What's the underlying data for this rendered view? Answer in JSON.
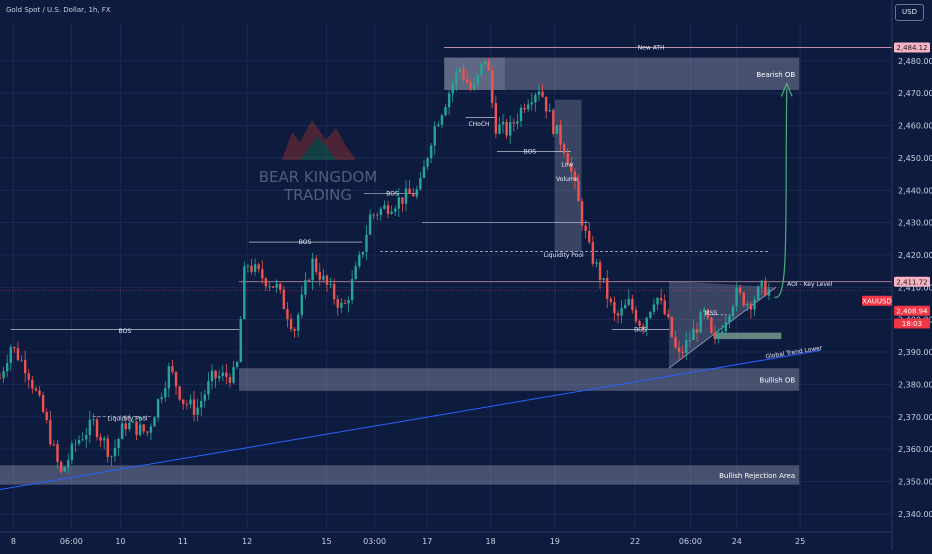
{
  "header": {
    "symbol_title": "Gold Spot / U.S. Dollar, 1h, FX",
    "currency_button": "USD"
  },
  "chart_data": {
    "type": "candlestick",
    "title": "Gold Spot / U.S. Dollar, 1h, FX",
    "ylim": [
      2335,
      2492
    ],
    "y_ticks": [
      2340,
      2350,
      2360,
      2370,
      2380,
      2390,
      2400,
      2410,
      2420,
      2430,
      2440,
      2450,
      2460,
      2470,
      2480
    ],
    "x_ticks": [
      "8",
      "06:00",
      "10",
      "11",
      "12",
      "15",
      "03:00",
      "17",
      "18",
      "19",
      "22",
      "06:00",
      "24",
      "25"
    ],
    "x_tick_pos": [
      0.015,
      0.08,
      0.135,
      0.205,
      0.277,
      0.366,
      0.42,
      0.479,
      0.55,
      0.622,
      0.712,
      0.774,
      0.826,
      0.897
    ],
    "price_tags": [
      {
        "label": "2,484.12",
        "value": 2484.12,
        "color": "#f7b4c4",
        "text_color": "#1a1a1a"
      },
      {
        "label": "2,411.72",
        "value": 2411.72,
        "color": "#f7b4c4",
        "text_color": "#1a1a1a"
      },
      {
        "label": "XAUUSD",
        "value": 2408.94,
        "color": "#f23645",
        "text_color": "#ffffff"
      },
      {
        "label": "2,408.94",
        "value": 2408.94,
        "color": "#f23645",
        "text_color": "#ffffff"
      },
      {
        "label": "18:03",
        "value": 2405.0,
        "color": "#f23645",
        "text_color": "#ffffff"
      }
    ],
    "zones": [
      {
        "label": "Bearish OB",
        "x0": 0.498,
        "x1": 0.896,
        "y_top": 2481,
        "y_bot": 2471
      },
      {
        "label": "Bullish OB",
        "x0": 0.268,
        "x1": 0.896,
        "y_top": 2385,
        "y_bot": 2378
      },
      {
        "label": "Bullish Rejection Area",
        "x0": 0.0,
        "x1": 0.896,
        "y_top": 2355,
        "y_bot": 2349
      }
    ],
    "annotations": [
      {
        "text": "New ATH",
        "x": 0.73,
        "y": 2484.1
      },
      {
        "text": "CHoCH",
        "x": 0.537,
        "y": 2460.5
      },
      {
        "text": "BOS",
        "x": 0.594,
        "y": 2452
      },
      {
        "text": "Low",
        "x": 0.636,
        "y": 2448
      },
      {
        "text": "Volume",
        "x": 0.636,
        "y": 2443.5
      },
      {
        "text": "BOS",
        "x": 0.44,
        "y": 2439
      },
      {
        "text": "BOS",
        "x": 0.342,
        "y": 2424
      },
      {
        "text": "Liquidity Pool",
        "x": 0.632,
        "y": 2420
      },
      {
        "text": "AOI - Key Level",
        "x": 0.933,
        "y": 2411
      },
      {
        "text": "MSS",
        "x": 0.797,
        "y": 2402
      },
      {
        "text": "BOS",
        "x": 0.718,
        "y": 2397
      },
      {
        "text": "BOS",
        "x": 0.14,
        "y": 2396.5
      },
      {
        "text": "Global Trend Lower",
        "x": 0.89,
        "y": 2390
      },
      {
        "text": "Liquidity Pool",
        "x": 0.143,
        "y": 2369.5
      }
    ],
    "watermark": "BEAR KINGDOM TRADING",
    "watermark_line1": "BEAR KINGDOM",
    "watermark_line2": "TRADING",
    "key_level": 2411.72,
    "last_price": 2408.94,
    "colors": {
      "background": "#0d1b3e",
      "up": "#26a69a",
      "down": "#ef5350",
      "trend": "#2962ff",
      "zone": "#8d93a8",
      "arrow": "#4caf79",
      "ath": "#f7b4c4"
    }
  }
}
